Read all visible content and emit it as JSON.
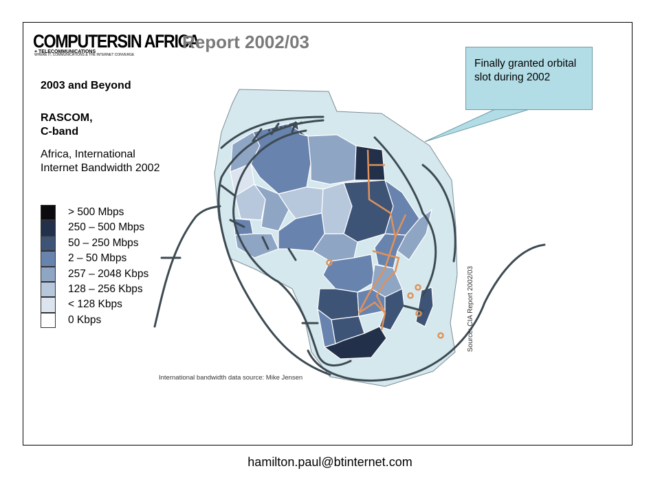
{
  "header": {
    "logo_main": "COMPUTERSIN AFRICA",
    "logo_sub": "+ TELECOMMUNICATIONS",
    "logo_tagline": "WHERE IT, COMMUNICATIONS & THE INTERNET CONVERGE",
    "report_title": "Report 2002/03"
  },
  "sidebar": {
    "heading": "2003 and Beyond",
    "subject_lines": [
      "RASCOM,",
      "C-band"
    ],
    "description": "Africa, International Internet Bandwidth 2002"
  },
  "legend": {
    "items": [
      {
        "label": "> 500 Mbps",
        "color": "#0a0a0f"
      },
      {
        "label": "250 – 500 Mbps",
        "color": "#22304a"
      },
      {
        "label": "50 – 250 Mbps",
        "color": "#3e5477"
      },
      {
        "label": "2 – 50 Mbps",
        "color": "#6883ad"
      },
      {
        "label": "257 – 2048 Kbps",
        "color": "#8fa5c4"
      },
      {
        "label": "128 – 256 Kbps",
        "color": "#b7c7dc"
      },
      {
        "label": "< 128 Kbps",
        "color": "#dbe4ef"
      },
      {
        "label": "0 Kbps",
        "color": "#ffffff"
      }
    ]
  },
  "map": {
    "footprint_color": "#d4e8ee",
    "cable_color": "#3d4a52",
    "terrestrial_link_color": "#e0925a"
  },
  "callout": {
    "text": "Finally granted orbital slot during 2002",
    "color": "#b3dde6"
  },
  "sources": {
    "vertical": "Source: CIA Report 2002/03",
    "bottom": "International bandwidth data source: Mike Jensen"
  },
  "footer": {
    "email": "hamilton.paul@btinternet.com"
  }
}
